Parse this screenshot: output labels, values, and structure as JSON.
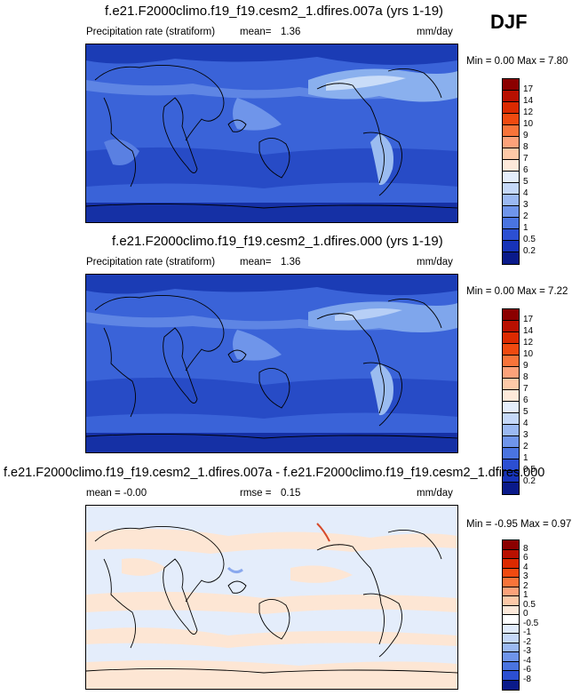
{
  "season": "DJF",
  "panels": [
    {
      "title": "f.e21.F2000climo.f19_f19.cesm2_1.dfires.007a (yrs 1-19)",
      "left_label": "Precipitation rate (stratiform)",
      "stat_label": "mean=",
      "stat_value": "1.36",
      "units": "mm/day",
      "minmax": "Min =  0.00 Max =  7.80",
      "colorbar": {
        "labels": [
          "17",
          "14",
          "12",
          "10",
          "9",
          "8",
          "7",
          "6",
          "5",
          "4",
          "3",
          "2",
          "1",
          "0.5",
          "0.2"
        ],
        "colors": [
          "#8b0000",
          "#b81000",
          "#dc2a00",
          "#f04a10",
          "#f8743a",
          "#fca27a",
          "#fdc9a8",
          "#fde9da",
          "#e5eefc",
          "#c5d8f8",
          "#9bb9f2",
          "#6f95ea",
          "#4a74e0",
          "#2c4fd2",
          "#1733b8",
          "#0a1a8a"
        ]
      }
    },
    {
      "title": "f.e21.F2000climo.f19_f19.cesm2_1.dfires.000 (yrs 1-19)",
      "left_label": "Precipitation rate (stratiform)",
      "stat_label": "mean=",
      "stat_value": "1.36",
      "units": "mm/day",
      "minmax": "Min =  0.00 Max =  7.22",
      "colorbar": {
        "labels": [
          "17",
          "14",
          "12",
          "10",
          "9",
          "8",
          "7",
          "6",
          "5",
          "4",
          "3",
          "2",
          "1",
          "0.5",
          "0.2"
        ],
        "colors": [
          "#8b0000",
          "#b81000",
          "#dc2a00",
          "#f04a10",
          "#f8743a",
          "#fca27a",
          "#fdc9a8",
          "#fde9da",
          "#e5eefc",
          "#c5d8f8",
          "#9bb9f2",
          "#6f95ea",
          "#4a74e0",
          "#2c4fd2",
          "#1733b8",
          "#0a1a8a"
        ]
      }
    },
    {
      "title": "f.e21.F2000climo.f19_f19.cesm2_1.dfires.007a - f.e21.F2000climo.f19_f19.cesm2_1.dfires.000",
      "left_label": "mean =  -0.00",
      "stat_label": "rmse =",
      "stat_value": "0.15",
      "units": "mm/day",
      "minmax": "Min = -0.95 Max =  0.97",
      "colorbar": {
        "labels": [
          "8",
          "6",
          "4",
          "3",
          "2",
          "1",
          "0.5",
          "0",
          "-0.5",
          "-1",
          "-2",
          "-3",
          "-4",
          "-6",
          "-8"
        ],
        "colors": [
          "#8b0000",
          "#b81000",
          "#dc2a00",
          "#f04a10",
          "#f8743a",
          "#fca27a",
          "#fdc9a8",
          "#fde9da",
          "#ffffff",
          "#e1ebfb",
          "#c5d8f8",
          "#9bb9f2",
          "#6f95ea",
          "#4a74e0",
          "#2c4fd2",
          "#0a1a8a"
        ]
      }
    }
  ]
}
